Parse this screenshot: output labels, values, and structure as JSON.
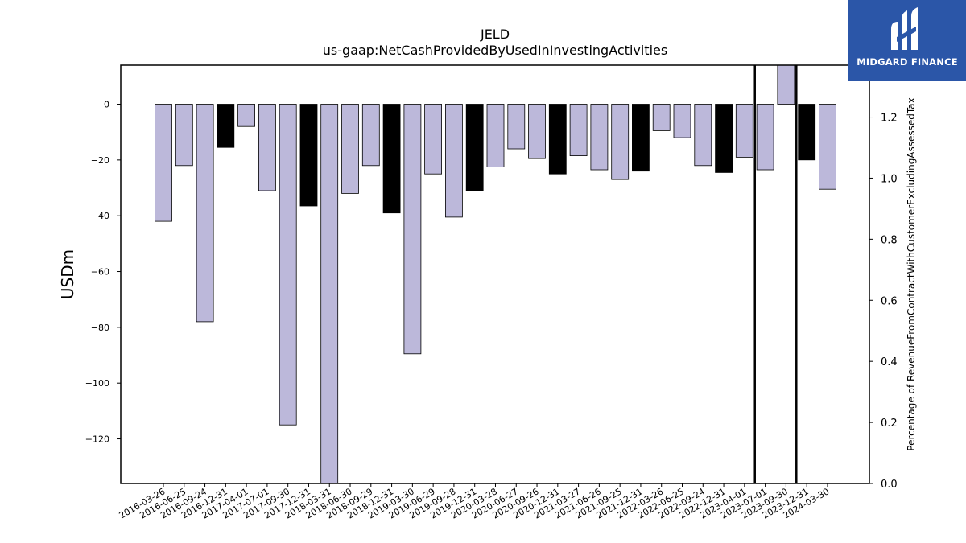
{
  "chart_data": {
    "type": "bar",
    "title": "JELD",
    "subtitle": "us-gaap:NetCashProvidedByUsedInInvestingActivities",
    "ylabel": "USDm",
    "y2label": "Percentage of RevenueFromContractWithCustomerExcludingAssessedTax",
    "ylim": [
      -136,
      14
    ],
    "y2lim": [
      0,
      1.37
    ],
    "yticks": [
      0,
      -20,
      -40,
      -60,
      -80,
      -100,
      -120
    ],
    "y2ticks": [
      "0.0",
      "0.2",
      "0.4",
      "0.6",
      "0.8",
      "1.0",
      "1.2"
    ],
    "grid": false,
    "categories": [
      "2016-03-26",
      "2016-06-25",
      "2016-09-24",
      "2016-12-31",
      "2017-04-01",
      "2017-07-01",
      "2017-09-30",
      "2017-12-31",
      "2018-03-31",
      "2018-06-30",
      "2018-09-29",
      "2018-12-31",
      "2019-03-30",
      "2019-06-29",
      "2019-09-28",
      "2019-12-31",
      "2020-03-28",
      "2020-06-27",
      "2020-09-26",
      "2020-12-31",
      "2021-03-27",
      "2021-06-26",
      "2021-09-25",
      "2021-12-31",
      "2022-03-26",
      "2022-06-25",
      "2022-09-24",
      "2022-12-31",
      "2023-04-01",
      "2023-07-01",
      "2023-09-30",
      "2023-12-31",
      "2024-03-30"
    ],
    "values": [
      -42,
      -22,
      -78,
      -15.5,
      -8,
      -31,
      -115,
      -36.5,
      -137,
      -32,
      -22,
      -39,
      -89.5,
      -25,
      -40.5,
      -31,
      -22.5,
      -16,
      -19.5,
      -25,
      -18.5,
      -23.5,
      -27,
      -24,
      -9.5,
      -12,
      -22,
      -24.5,
      -19,
      -23.5,
      14,
      -20,
      -30.5
    ],
    "highlight": [
      false,
      false,
      false,
      true,
      false,
      false,
      false,
      true,
      false,
      false,
      false,
      true,
      false,
      false,
      false,
      true,
      false,
      false,
      false,
      true,
      false,
      false,
      false,
      true,
      false,
      false,
      false,
      true,
      false,
      false,
      false,
      true,
      false
    ],
    "vlines": [
      "2023-04-01",
      "2023-09-30"
    ],
    "colors": {
      "bar": "#bcb8da",
      "highlight": "#000000",
      "edge": "#000000"
    }
  },
  "logo": {
    "text": "MIDGARD FINANCE"
  }
}
